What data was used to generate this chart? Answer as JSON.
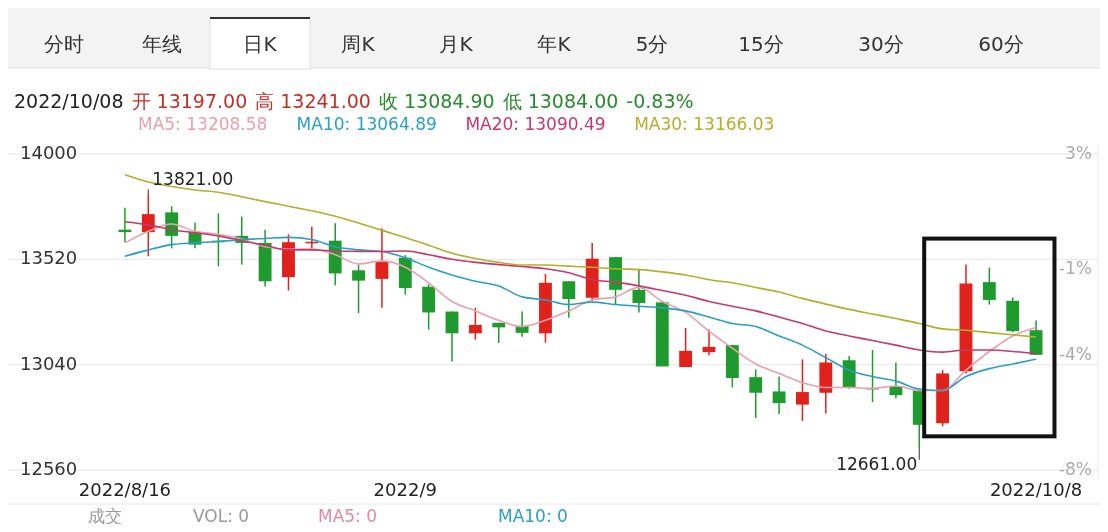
{
  "chart_data": {
    "type": "candlestick",
    "categories": [
      "2022/8/16",
      null,
      null,
      null,
      null,
      null,
      null,
      null,
      null,
      null,
      null,
      null,
      "2022/9",
      null,
      null,
      null,
      null,
      null,
      null,
      null,
      null,
      null,
      null,
      null,
      null,
      null,
      null,
      null,
      null,
      null,
      null,
      null,
      null,
      null,
      null,
      null,
      null,
      null,
      null,
      "2022/10/8"
    ],
    "ohlc": [
      [
        13655,
        13755,
        13598,
        13644
      ],
      [
        13644,
        13821,
        13534,
        13726
      ],
      [
        13734,
        13762,
        13570,
        13627
      ],
      [
        13645,
        13688,
        13570,
        13587
      ],
      [
        13605,
        13729,
        13489,
        13600
      ],
      [
        13627,
        13715,
        13496,
        13595
      ],
      [
        13595,
        13655,
        13396,
        13420
      ],
      [
        13439,
        13634,
        13378,
        13598
      ],
      [
        13598,
        13669,
        13567,
        13600
      ],
      [
        13605,
        13684,
        13402,
        13456
      ],
      [
        13470,
        13496,
        13275,
        13423
      ],
      [
        13431,
        13662,
        13299,
        13509
      ],
      [
        13527,
        13539,
        13359,
        13389
      ],
      [
        13395,
        13406,
        13200,
        13278
      ],
      [
        13282,
        13282,
        13055,
        13183
      ],
      [
        13183,
        13299,
        13154,
        13221
      ],
      [
        13231,
        13231,
        13139,
        13210
      ],
      [
        13217,
        13282,
        13167,
        13185
      ],
      [
        13183,
        13453,
        13140,
        13413
      ],
      [
        13420,
        13420,
        13254,
        13339
      ],
      [
        13345,
        13595,
        13328,
        13523
      ],
      [
        13530,
        13530,
        13311,
        13381
      ],
      [
        13381,
        13477,
        13278,
        13321
      ],
      [
        13324,
        13328,
        13032,
        13032
      ],
      [
        13029,
        13207,
        13029,
        13103
      ],
      [
        13097,
        13200,
        13083,
        13121
      ],
      [
        13129,
        13131,
        12936,
        12979
      ],
      [
        12983,
        13018,
        12797,
        12912
      ],
      [
        12918,
        12986,
        12815,
        12865
      ],
      [
        12858,
        13064,
        12784,
        12915
      ],
      [
        12912,
        13089,
        12818,
        13050
      ],
      [
        13060,
        13079,
        12930,
        12936
      ],
      [
        12934,
        13107,
        12869,
        12932
      ],
      [
        12941,
        13050,
        12887,
        12901
      ],
      [
        12922,
        12929,
        12661,
        12766
      ],
      [
        12773,
        13015,
        12759,
        13000
      ],
      [
        13010,
        13496,
        13000,
        13410
      ],
      [
        13416,
        13482,
        13314,
        13335
      ],
      [
        13331,
        13346,
        13188,
        13193
      ],
      [
        13197,
        13241,
        13084,
        13084.9
      ]
    ],
    "colors": [
      "#1e9a2e",
      "#e0211c",
      "#1e9a2e",
      "#1e9a2e",
      "#1e9a2e",
      "#1e9a2e",
      "#1e9a2e",
      "#e0211c",
      "#e0211c",
      "#1e9a2e",
      "#1e9a2e",
      "#e0211c",
      "#1e9a2e",
      "#1e9a2e",
      "#1e9a2e",
      "#e0211c",
      "#1e9a2e",
      "#1e9a2e",
      "#e0211c",
      "#1e9a2e",
      "#e0211c",
      "#1e9a2e",
      "#1e9a2e",
      "#1e9a2e",
      "#e0211c",
      "#e0211c",
      "#1e9a2e",
      "#1e9a2e",
      "#1e9a2e",
      "#e0211c",
      "#e0211c",
      "#1e9a2e",
      "#1e9a2e",
      "#1e9a2e",
      "#1e9a2e",
      "#e0211c",
      "#e0211c",
      "#1e9a2e",
      "#1e9a2e",
      "#1e9a2e"
    ],
    "series": [
      {
        "name": "MA5: 13208.58",
        "type": "line",
        "color": "#e8a0ae",
        "values": [
          13595,
          13648,
          13681,
          13648,
          13634,
          13613,
          13577,
          13566,
          13567,
          13541,
          13499,
          13513,
          13484,
          13413,
          13328,
          13285,
          13242,
          13214,
          13242,
          13285,
          13335,
          13349,
          13392,
          13328,
          13278,
          13193,
          13115,
          13043,
          13000,
          12958,
          12936,
          12936,
          12932,
          12943,
          12922,
          12922,
          13015,
          13100,
          13171,
          13209
        ]
      },
      {
        "name": "MA10: 13064.89",
        "type": "line",
        "color": "#2a9fc4",
        "values": [
          13534,
          13563,
          13587,
          13595,
          13601,
          13610,
          13615,
          13620,
          13610,
          13577,
          13563,
          13556,
          13527,
          13484,
          13449,
          13420,
          13399,
          13349,
          13335,
          13314,
          13325,
          13314,
          13306,
          13299,
          13285,
          13257,
          13228,
          13214,
          13171,
          13129,
          13072,
          13015,
          12986,
          12965,
          12929,
          12922,
          12986,
          13022,
          13043,
          13065
        ]
      },
      {
        "name": "MA20: 13090.49",
        "type": "line",
        "color": "#c4386e",
        "values": [
          13691,
          13677,
          13655,
          13641,
          13627,
          13605,
          13584,
          13563,
          13563,
          13558,
          13556,
          13556,
          13558,
          13541,
          13520,
          13506,
          13496,
          13487,
          13477,
          13459,
          13427,
          13416,
          13399,
          13378,
          13356,
          13328,
          13306,
          13285,
          13257,
          13228,
          13193,
          13171,
          13150,
          13129,
          13107,
          13097,
          13107,
          13107,
          13100,
          13090
        ]
      },
      {
        "name": "MA30: 13166.03",
        "type": "line",
        "color": "#b5ad2c",
        "values": [
          13905,
          13872,
          13852,
          13836,
          13826,
          13805,
          13783,
          13762,
          13741,
          13716,
          13686,
          13652,
          13620,
          13584,
          13548,
          13524,
          13506,
          13494,
          13494,
          13489,
          13484,
          13477,
          13473,
          13463,
          13449,
          13427,
          13413,
          13392,
          13371,
          13342,
          13316,
          13292,
          13271,
          13250,
          13228,
          13203,
          13197,
          13186,
          13176,
          13166
        ]
      }
    ],
    "ylim": [
      12560,
      14000
    ],
    "yticks": [
      14000,
      13520,
      13040,
      12560
    ],
    "y2lim": [
      -8,
      3
    ],
    "y2ticks": [
      {
        "value": 3,
        "label": "3%"
      },
      {
        "value": -1,
        "label": "-1%"
      },
      {
        "value": -4,
        "label": "-4%"
      },
      {
        "value": -8,
        "label": "-8%"
      }
    ],
    "grid": "y",
    "legend": "top left",
    "annotations": [
      "分时",
      "年线",
      "日K",
      "周K",
      "月K",
      "年K",
      "5分",
      "15分",
      "30分",
      "60分",
      "2022/10/08",
      "开 13197.00",
      "高 13241.00",
      "收 13084.90",
      "低 13084.00",
      "-0.83%",
      "成交",
      "VOL: 0",
      "MA5: 0",
      "MA10: 0",
      "13821.00",
      "12661.00"
    ]
  }
}
